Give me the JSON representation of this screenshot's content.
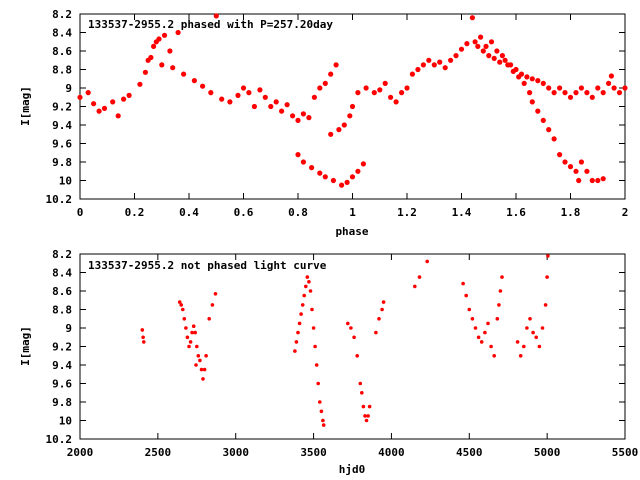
{
  "chart_data": [
    {
      "type": "scatter",
      "title": "133537-2955.2 phased with P=257.20day",
      "xlabel": "phase",
      "ylabel": "I[mag]",
      "xlim": [
        0,
        2
      ],
      "ylim": [
        8.2,
        10.2
      ],
      "y_inverted": true,
      "xticks": [
        "0",
        "0.2",
        "0.4",
        "0.6",
        "0.8",
        "1",
        "1.2",
        "1.4",
        "1.6",
        "1.8",
        "2"
      ],
      "yticks": [
        "8.2",
        "8.4",
        "8.6",
        "8.8",
        "9",
        "9.2",
        "9.4",
        "9.6",
        "9.8",
        "10",
        "10.2"
      ],
      "marker_color": "#ff0000",
      "points": [
        [
          0.0,
          9.1
        ],
        [
          0.03,
          9.05
        ],
        [
          0.05,
          9.17
        ],
        [
          0.07,
          9.25
        ],
        [
          0.09,
          9.22
        ],
        [
          0.12,
          9.15
        ],
        [
          0.14,
          9.3
        ],
        [
          0.16,
          9.12
        ],
        [
          0.18,
          9.08
        ],
        [
          0.22,
          8.96
        ],
        [
          0.24,
          8.83
        ],
        [
          0.26,
          8.67
        ],
        [
          0.27,
          8.55
        ],
        [
          0.28,
          8.5
        ],
        [
          0.29,
          8.47
        ],
        [
          0.31,
          8.43
        ],
        [
          0.33,
          8.6
        ],
        [
          0.36,
          8.4
        ],
        [
          0.25,
          8.7
        ],
        [
          0.3,
          8.75
        ],
        [
          0.34,
          8.78
        ],
        [
          0.38,
          8.85
        ],
        [
          0.42,
          8.92
        ],
        [
          0.45,
          8.98
        ],
        [
          0.48,
          9.05
        ],
        [
          0.5,
          8.22
        ],
        [
          0.52,
          9.12
        ],
        [
          0.55,
          9.15
        ],
        [
          0.58,
          9.08
        ],
        [
          0.6,
          9.0
        ],
        [
          0.62,
          9.05
        ],
        [
          0.64,
          9.2
        ],
        [
          0.66,
          9.02
        ],
        [
          0.68,
          9.1
        ],
        [
          0.7,
          9.2
        ],
        [
          0.72,
          9.15
        ],
        [
          0.74,
          9.25
        ],
        [
          0.76,
          9.18
        ],
        [
          0.78,
          9.3
        ],
        [
          0.8,
          9.35
        ],
        [
          0.82,
          9.28
        ],
        [
          0.84,
          9.32
        ],
        [
          0.8,
          9.72
        ],
        [
          0.82,
          9.8
        ],
        [
          0.85,
          9.86
        ],
        [
          0.88,
          9.92
        ],
        [
          0.9,
          9.96
        ],
        [
          0.93,
          10.0
        ],
        [
          0.96,
          10.05
        ],
        [
          0.98,
          10.02
        ],
        [
          1.0,
          9.96
        ],
        [
          1.02,
          9.9
        ],
        [
          1.04,
          9.82
        ],
        [
          0.86,
          9.1
        ],
        [
          0.88,
          9.0
        ],
        [
          0.9,
          8.95
        ],
        [
          0.92,
          8.85
        ],
        [
          0.94,
          8.75
        ],
        [
          0.92,
          9.5
        ],
        [
          0.95,
          9.45
        ],
        [
          0.97,
          9.4
        ],
        [
          0.99,
          9.3
        ],
        [
          1.0,
          9.2
        ],
        [
          1.02,
          9.05
        ],
        [
          1.05,
          9.0
        ],
        [
          1.08,
          9.05
        ],
        [
          1.1,
          9.02
        ],
        [
          1.12,
          8.95
        ],
        [
          1.14,
          9.1
        ],
        [
          1.16,
          9.15
        ],
        [
          1.18,
          9.05
        ],
        [
          1.2,
          9.0
        ],
        [
          1.22,
          8.85
        ],
        [
          1.24,
          8.8
        ],
        [
          1.26,
          8.75
        ],
        [
          1.28,
          8.7
        ],
        [
          1.3,
          8.75
        ],
        [
          1.32,
          8.72
        ],
        [
          1.34,
          8.78
        ],
        [
          1.36,
          8.7
        ],
        [
          1.38,
          8.65
        ],
        [
          1.4,
          8.58
        ],
        [
          1.42,
          8.52
        ],
        [
          1.44,
          8.24
        ],
        [
          1.45,
          8.5
        ],
        [
          1.47,
          8.45
        ],
        [
          1.49,
          8.55
        ],
        [
          1.51,
          8.5
        ],
        [
          1.53,
          8.6
        ],
        [
          1.55,
          8.65
        ],
        [
          1.57,
          8.75
        ],
        [
          1.59,
          8.82
        ],
        [
          1.61,
          8.88
        ],
        [
          1.63,
          8.95
        ],
        [
          1.65,
          9.05
        ],
        [
          1.66,
          9.15
        ],
        [
          1.68,
          9.25
        ],
        [
          1.7,
          9.35
        ],
        [
          1.72,
          9.45
        ],
        [
          1.74,
          9.55
        ],
        [
          1.76,
          9.72
        ],
        [
          1.78,
          9.8
        ],
        [
          1.8,
          9.85
        ],
        [
          1.82,
          9.9
        ],
        [
          1.83,
          10.0
        ],
        [
          1.84,
          9.8
        ],
        [
          1.86,
          9.9
        ],
        [
          1.88,
          10.0
        ],
        [
          1.9,
          10.0
        ],
        [
          1.92,
          9.98
        ],
        [
          1.46,
          8.55
        ],
        [
          1.48,
          8.6
        ],
        [
          1.5,
          8.65
        ],
        [
          1.52,
          8.68
        ],
        [
          1.54,
          8.72
        ],
        [
          1.56,
          8.7
        ],
        [
          1.58,
          8.75
        ],
        [
          1.6,
          8.8
        ],
        [
          1.62,
          8.85
        ],
        [
          1.64,
          8.88
        ],
        [
          1.66,
          8.9
        ],
        [
          1.68,
          8.92
        ],
        [
          1.7,
          8.95
        ],
        [
          1.72,
          9.0
        ],
        [
          1.74,
          9.05
        ],
        [
          1.76,
          9.0
        ],
        [
          1.78,
          9.05
        ],
        [
          1.8,
          9.1
        ],
        [
          1.82,
          9.05
        ],
        [
          1.84,
          9.0
        ],
        [
          1.86,
          9.05
        ],
        [
          1.88,
          9.1
        ],
        [
          1.9,
          9.0
        ],
        [
          1.92,
          9.05
        ],
        [
          1.94,
          8.95
        ],
        [
          1.96,
          9.0
        ],
        [
          1.98,
          9.05
        ],
        [
          2.0,
          9.0
        ],
        [
          1.95,
          8.87
        ]
      ]
    },
    {
      "type": "scatter",
      "title": "133537-2955.2 not phased light curve",
      "xlabel": "hjd0",
      "ylabel": "I[mag]",
      "xlim": [
        2000,
        5500
      ],
      "ylim": [
        8.2,
        10.2
      ],
      "y_inverted": true,
      "xticks": [
        "2000",
        "2500",
        "3000",
        "3500",
        "4000",
        "4500",
        "5000",
        "5500"
      ],
      "yticks": [
        "8.2",
        "8.4",
        "8.6",
        "8.8",
        "9",
        "9.2",
        "9.4",
        "9.6",
        "9.8",
        "10",
        "10.2"
      ],
      "marker_color": "#ff0000",
      "points": [
        [
          2400,
          9.02
        ],
        [
          2405,
          9.1
        ],
        [
          2410,
          9.15
        ],
        [
          2640,
          8.72
        ],
        [
          2650,
          8.75
        ],
        [
          2660,
          8.8
        ],
        [
          2670,
          8.9
        ],
        [
          2680,
          9.0
        ],
        [
          2690,
          9.1
        ],
        [
          2700,
          9.2
        ],
        [
          2710,
          9.15
        ],
        [
          2720,
          9.05
        ],
        [
          2730,
          8.98
        ],
        [
          2740,
          9.05
        ],
        [
          2745,
          9.4
        ],
        [
          2750,
          9.2
        ],
        [
          2760,
          9.3
        ],
        [
          2770,
          9.35
        ],
        [
          2780,
          9.45
        ],
        [
          2790,
          9.55
        ],
        [
          2800,
          9.45
        ],
        [
          2810,
          9.3
        ],
        [
          2830,
          8.9
        ],
        [
          2850,
          8.75
        ],
        [
          2870,
          8.63
        ],
        [
          3380,
          9.25
        ],
        [
          3390,
          9.15
        ],
        [
          3400,
          9.05
        ],
        [
          3410,
          8.95
        ],
        [
          3420,
          8.85
        ],
        [
          3430,
          8.75
        ],
        [
          3440,
          8.65
        ],
        [
          3450,
          8.55
        ],
        [
          3460,
          8.45
        ],
        [
          3470,
          8.5
        ],
        [
          3480,
          8.6
        ],
        [
          3490,
          8.8
        ],
        [
          3500,
          9.0
        ],
        [
          3510,
          9.2
        ],
        [
          3520,
          9.4
        ],
        [
          3530,
          9.6
        ],
        [
          3540,
          9.8
        ],
        [
          3550,
          9.9
        ],
        [
          3560,
          10.0
        ],
        [
          3565,
          10.05
        ],
        [
          3720,
          8.95
        ],
        [
          3740,
          9.0
        ],
        [
          3760,
          9.1
        ],
        [
          3780,
          9.3
        ],
        [
          3800,
          9.6
        ],
        [
          3810,
          9.7
        ],
        [
          3820,
          9.85
        ],
        [
          3830,
          9.95
        ],
        [
          3840,
          10.0
        ],
        [
          3850,
          9.95
        ],
        [
          3860,
          9.85
        ],
        [
          3900,
          9.05
        ],
        [
          3920,
          8.9
        ],
        [
          3940,
          8.8
        ],
        [
          3950,
          8.72
        ],
        [
          4150,
          8.55
        ],
        [
          4180,
          8.45
        ],
        [
          4230,
          8.28
        ],
        [
          4460,
          8.52
        ],
        [
          4480,
          8.65
        ],
        [
          4500,
          8.8
        ],
        [
          4520,
          8.9
        ],
        [
          4540,
          9.0
        ],
        [
          4560,
          9.1
        ],
        [
          4580,
          9.15
        ],
        [
          4600,
          9.05
        ],
        [
          4620,
          8.95
        ],
        [
          4640,
          9.2
        ],
        [
          4660,
          9.3
        ],
        [
          4680,
          8.9
        ],
        [
          4700,
          8.6
        ],
        [
          4710,
          8.45
        ],
        [
          4690,
          8.75
        ],
        [
          4810,
          9.15
        ],
        [
          4830,
          9.3
        ],
        [
          4850,
          9.2
        ],
        [
          4870,
          9.0
        ],
        [
          4890,
          8.9
        ],
        [
          4910,
          9.05
        ],
        [
          4930,
          9.1
        ],
        [
          4950,
          9.2
        ],
        [
          4970,
          9.0
        ],
        [
          4990,
          8.75
        ],
        [
          5000,
          8.45
        ],
        [
          5005,
          8.22
        ]
      ]
    }
  ]
}
